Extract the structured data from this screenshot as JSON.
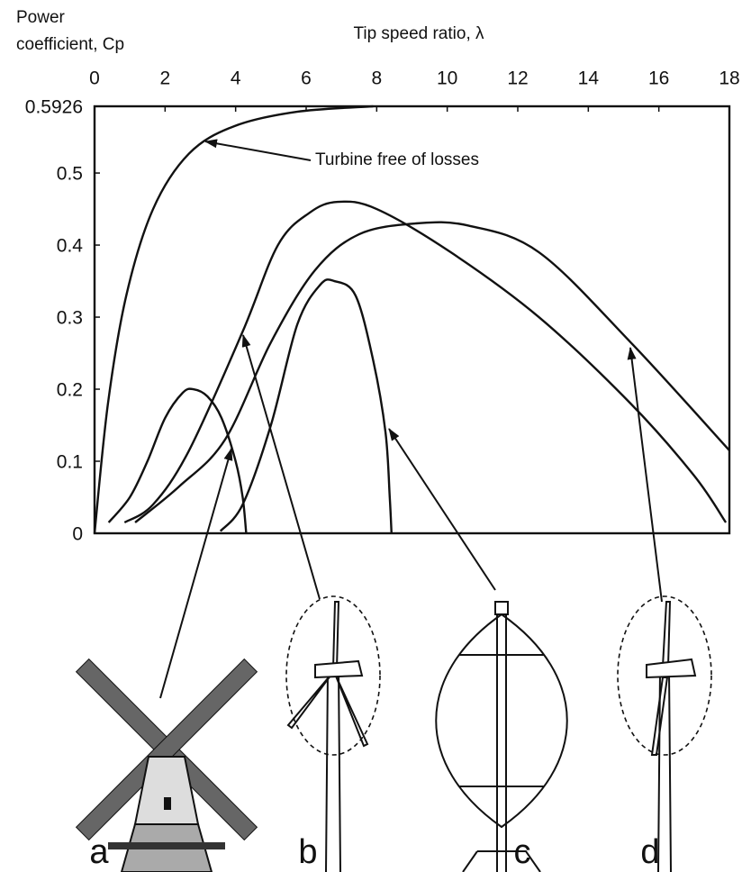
{
  "chart_data": {
    "type": "line",
    "ylabel": [
      "Power",
      "coefficient, Cp"
    ],
    "xlabel": "Tip speed ratio, λ",
    "xlim": [
      0,
      18
    ],
    "xticks": [
      0,
      2,
      4,
      6,
      8,
      10,
      12,
      14,
      16,
      18
    ],
    "ylim": [
      0,
      0.5926
    ],
    "yticks": [
      0,
      0.1,
      0.2,
      0.3,
      0.4,
      0.5,
      0.5926
    ],
    "annotation": "Turbine free of losses",
    "ideal": {
      "x": [
        0,
        0.38,
        0.9,
        1.66,
        2.68,
        3.96,
        5.74,
        7.9
      ],
      "values": [
        0,
        0.18,
        0.33,
        0.45,
        0.527,
        0.565,
        0.585,
        0.5926
      ]
    },
    "series": [
      {
        "name": "a",
        "color": "#111111",
        "x": [
          0.4,
          1.0,
          1.5,
          2.0,
          2.5,
          2.8,
          3.2,
          3.6,
          4.0,
          4.2,
          4.3
        ],
        "values": [
          0.015,
          0.05,
          0.1,
          0.16,
          0.195,
          0.2,
          0.19,
          0.16,
          0.1,
          0.05,
          0
        ]
      },
      {
        "name": "b",
        "color": "#111111",
        "x": [
          0.85,
          1.66,
          2.68,
          4.2,
          5.2,
          6.1,
          6.9,
          8.0,
          10.1,
          12.6,
          15.2,
          17.0,
          17.9
        ],
        "values": [
          0.015,
          0.04,
          0.115,
          0.28,
          0.4,
          0.445,
          0.46,
          0.45,
          0.39,
          0.3,
          0.18,
          0.08,
          0.015
        ]
      },
      {
        "name": "c",
        "color": "#111111",
        "x": [
          3.57,
          4.2,
          5.0,
          5.75,
          6.4,
          6.8,
          7.4,
          7.9,
          8.25,
          8.37,
          8.42
        ],
        "values": [
          0.003,
          0.04,
          0.15,
          0.29,
          0.345,
          0.35,
          0.33,
          0.24,
          0.14,
          0.05,
          0
        ]
      },
      {
        "name": "d",
        "color": "#111111",
        "x": [
          1.15,
          2.4,
          3.7,
          5.0,
          6.25,
          7.5,
          9.1,
          10.6,
          12.6,
          15.2,
          18
        ],
        "values": [
          0.015,
          0.065,
          0.13,
          0.265,
          0.365,
          0.415,
          0.43,
          0.427,
          0.39,
          0.265,
          0.115
        ]
      }
    ]
  }
}
